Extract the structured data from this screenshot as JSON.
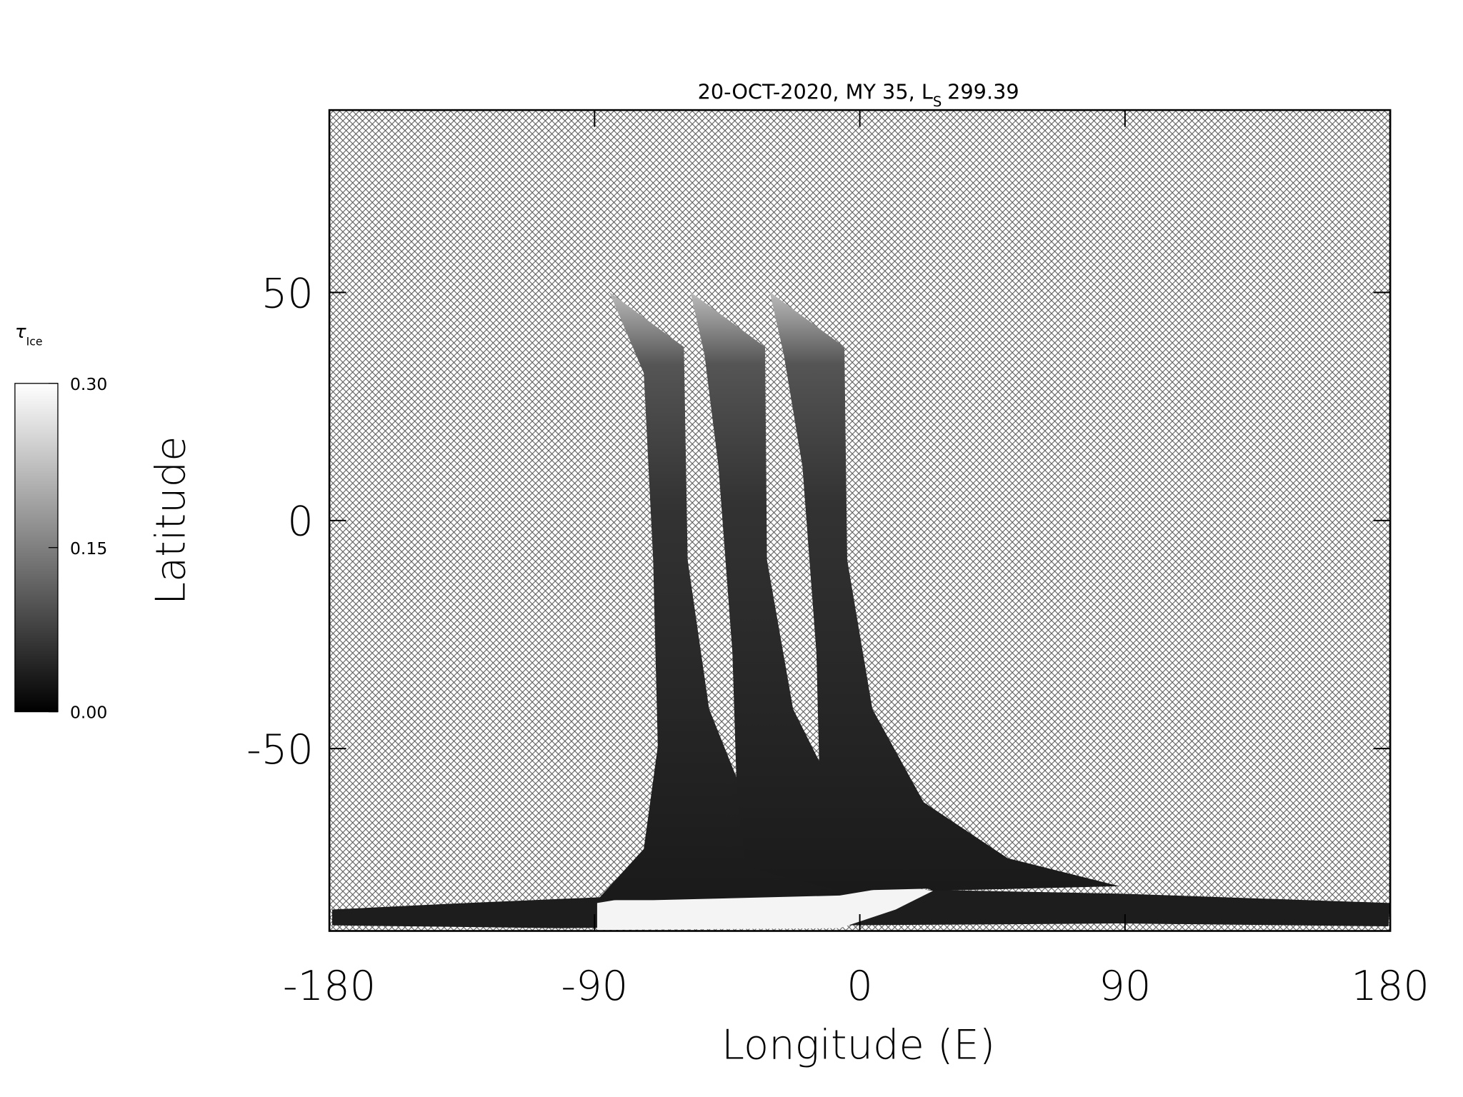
{
  "chart_data": {
    "type": "map",
    "title": "20-OCT-2020, MY 35,  L",
    "title_subscript": "S",
    "title_value": "299.39",
    "xlabel": "Longitude (E)",
    "ylabel": "Latitude",
    "xlim": [
      -180,
      180
    ],
    "xticks": [
      -180,
      -90,
      0,
      90,
      180
    ],
    "ylim": [
      -90,
      90
    ],
    "yticks": [
      -50,
      0,
      50
    ],
    "colorbar": {
      "label": "τ",
      "label_subscript": "Ice",
      "lim": [
        0,
        0.3
      ],
      "ticks": [
        {
          "value": 0,
          "label": "0.00"
        },
        {
          "value": 0.15,
          "label": "0.15"
        },
        {
          "value": 0.3,
          "label": "0.30"
        }
      ]
    }
  }
}
